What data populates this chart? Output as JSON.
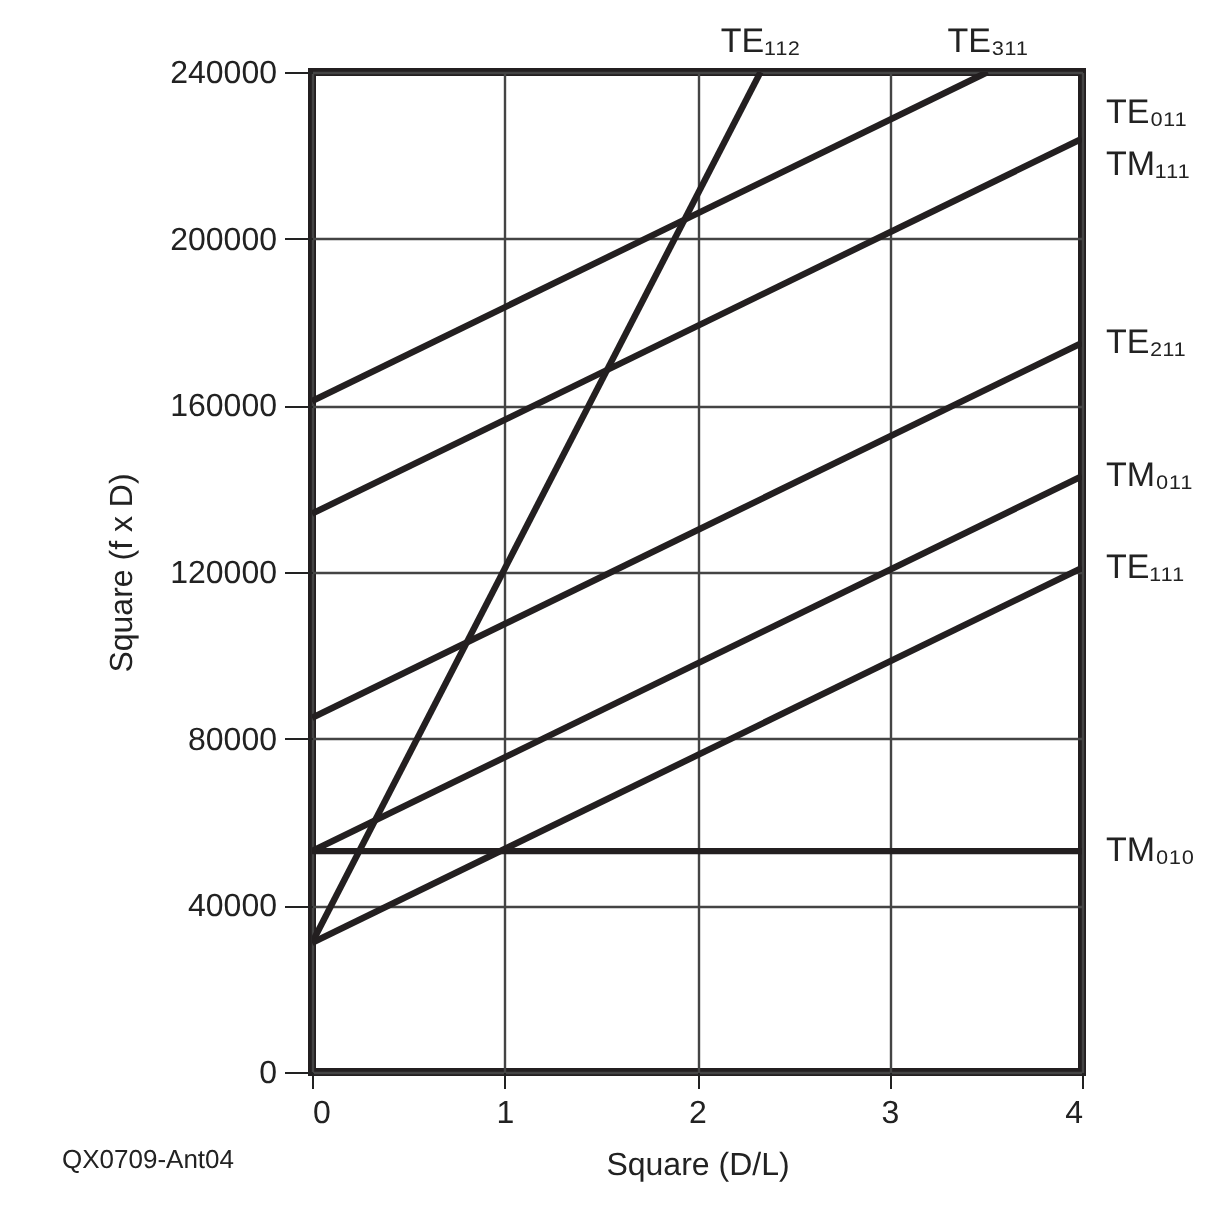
{
  "chart_data": {
    "type": "line",
    "xlabel": "Square (D/L)",
    "ylabel": "Square (f x D)",
    "xlim": [
      0,
      4
    ],
    "ylim": [
      0,
      240000
    ],
    "xticks": [
      0,
      1,
      2,
      3,
      4
    ],
    "yticks": [
      0,
      40000,
      80000,
      120000,
      160000,
      200000,
      240000
    ],
    "grid": true,
    "marker": "none",
    "line_style": "solid",
    "series": [
      {
        "color": "#231f20",
        "x": [
          0,
          2.33
        ],
        "values": [
          31000,
          240000
        ]
      },
      {
        "color": "#231f20",
        "x": [
          0,
          3.51
        ],
        "values": [
          161000,
          240000
        ]
      },
      {
        "color": "#231f20",
        "x": [
          0,
          4
        ],
        "values": [
          134000,
          224000
        ]
      },
      {
        "color": "#231f20",
        "x": [
          0,
          4
        ],
        "values": [
          85000,
          175000
        ]
      },
      {
        "color": "#231f20",
        "x": [
          0,
          4
        ],
        "values": [
          53000,
          143000
        ]
      },
      {
        "color": "#231f20",
        "x": [
          0,
          4
        ],
        "values": [
          31000,
          121000
        ]
      },
      {
        "color": "#231f20",
        "x": [
          0,
          4
        ],
        "values": [
          53000,
          53000
        ]
      }
    ],
    "annotations": [
      {
        "text": "TE₁₁₂",
        "x": 2.33,
        "y": 240000
      },
      {
        "text": "TE₃₁₁",
        "x": 3.51,
        "y": 240000
      },
      {
        "text": "TE₀₁₁",
        "x": 4,
        "y": 224000
      },
      {
        "text": "TM₁₁₁",
        "x": 4,
        "y": 224000
      },
      {
        "text": "TE₂₁₁",
        "x": 4,
        "y": 175000
      },
      {
        "text": "TM₀₁₁",
        "x": 4,
        "y": 143000
      },
      {
        "text": "TE₁₁₁",
        "x": 4,
        "y": 121000
      },
      {
        "text": "TM₀₁₀",
        "x": 4,
        "y": 53000
      },
      "QX0709-Ant04"
    ]
  }
}
